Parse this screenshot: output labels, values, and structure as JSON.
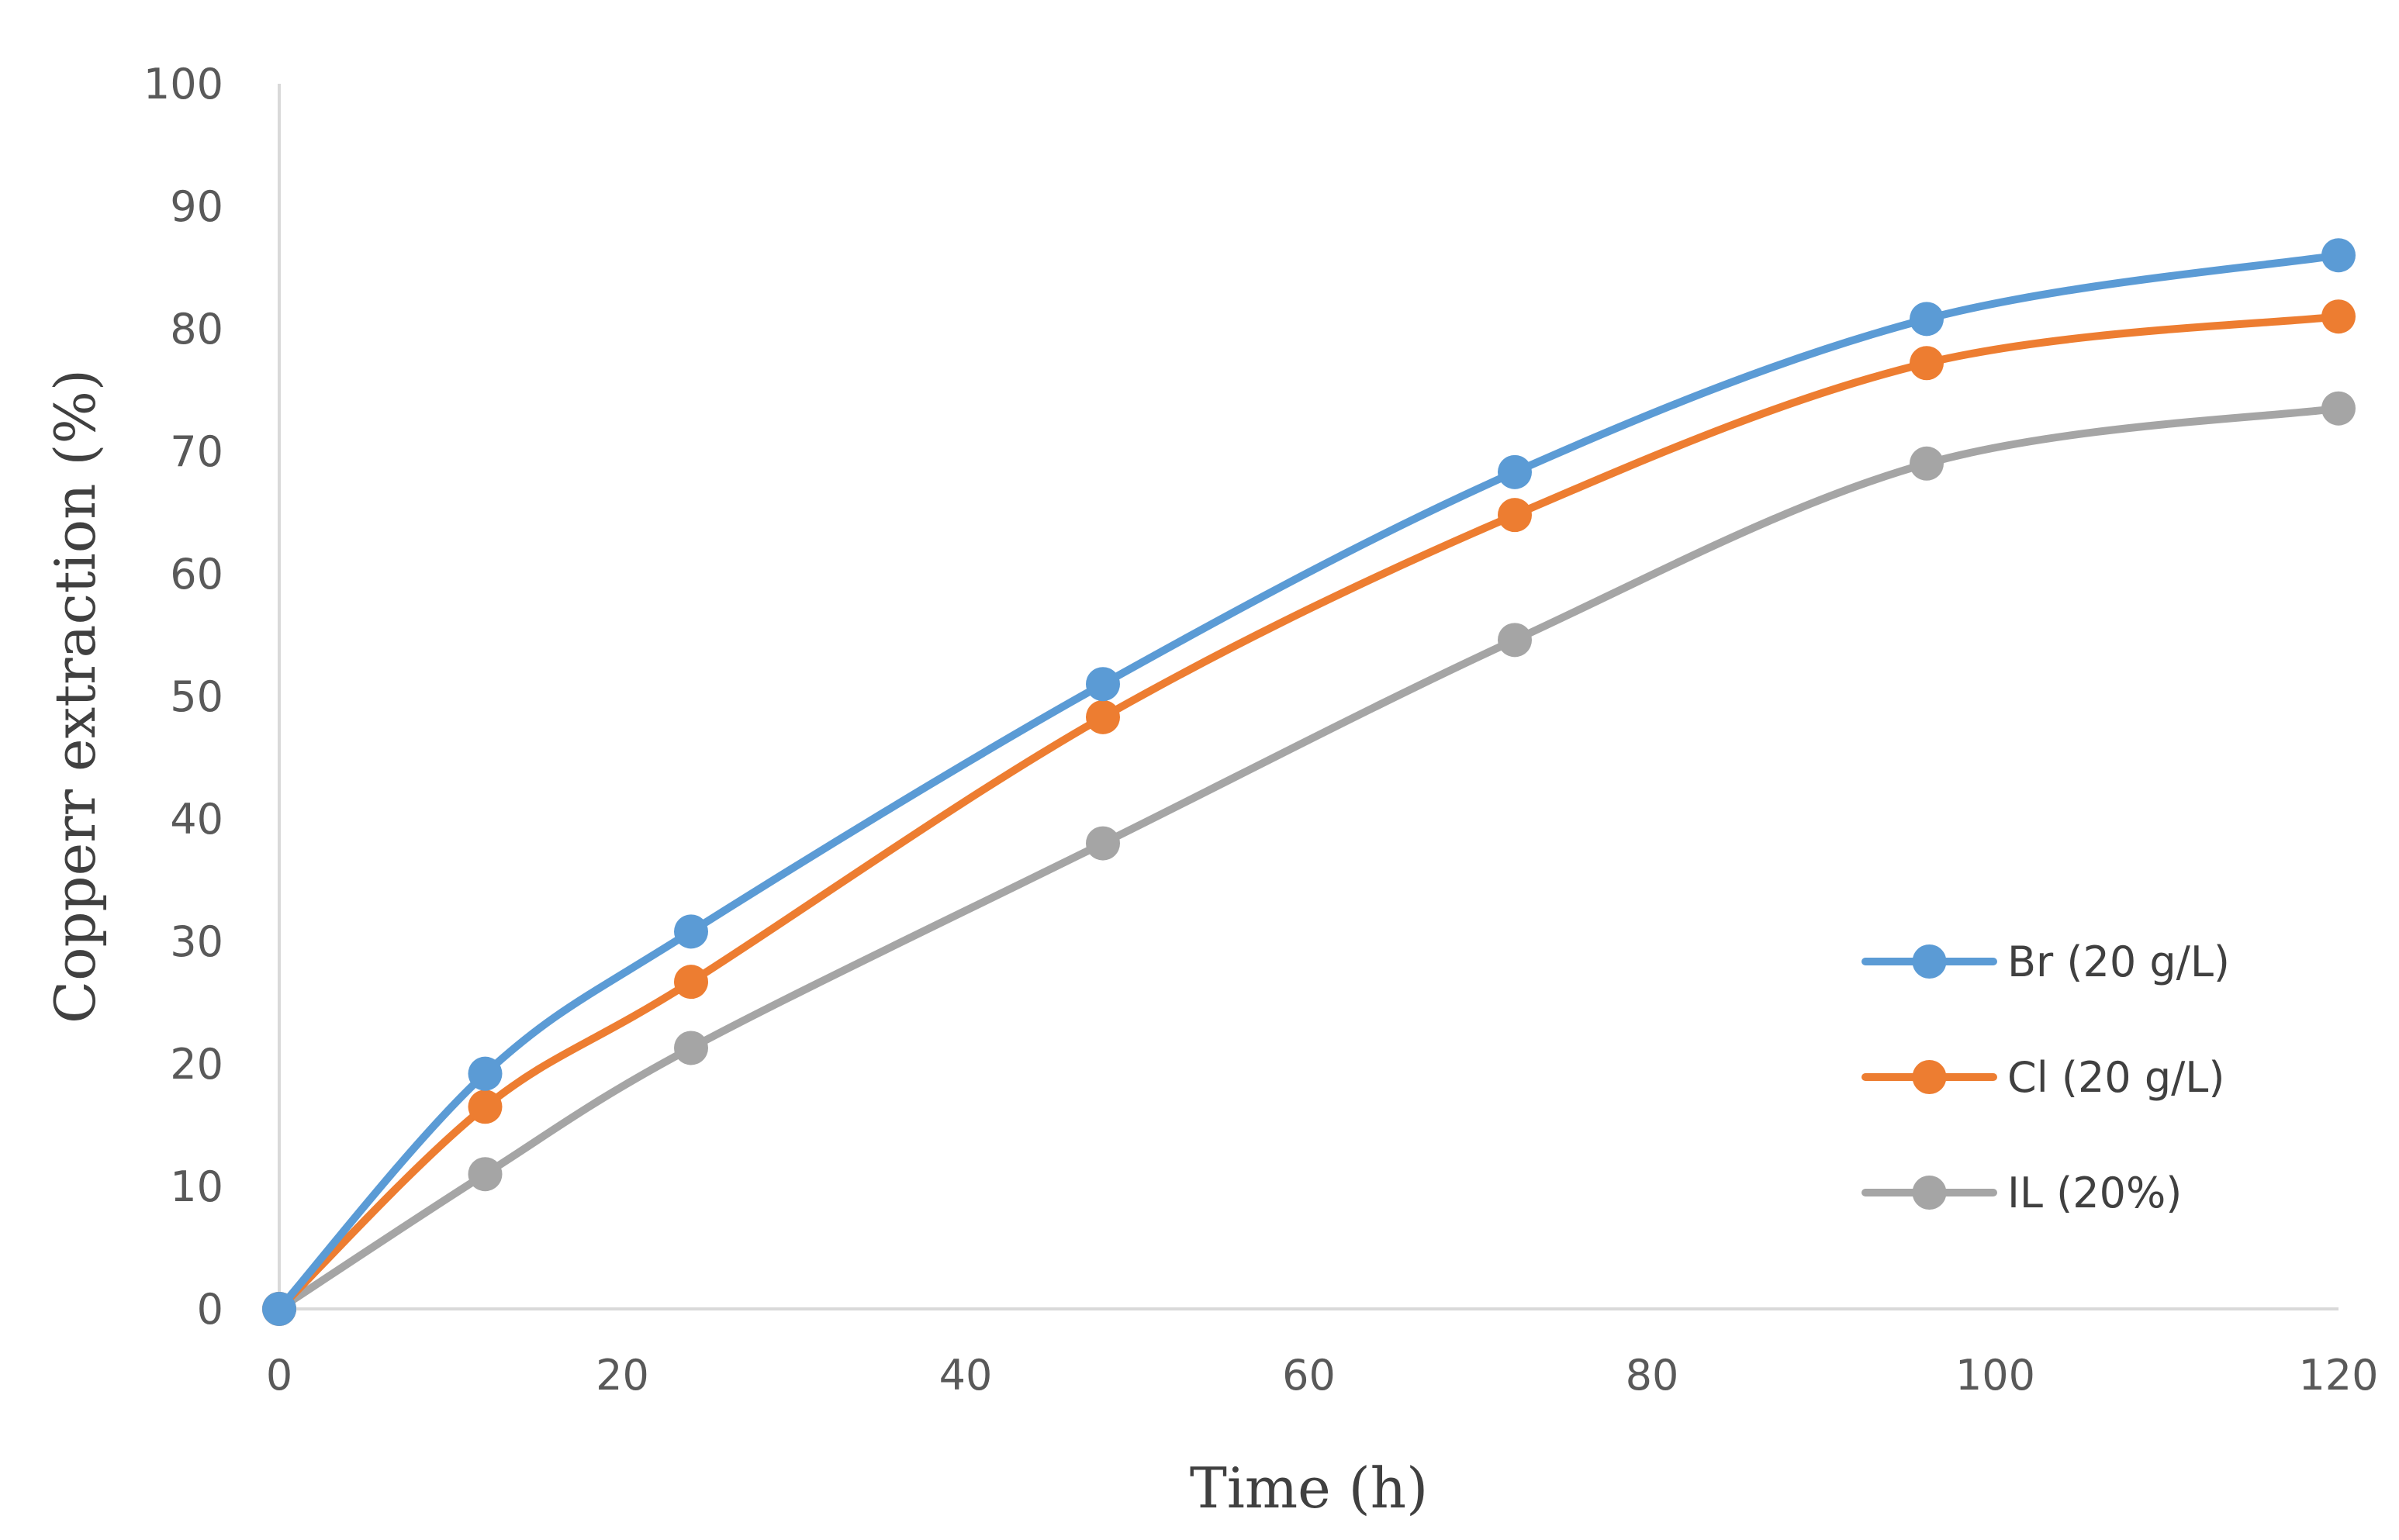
{
  "chart_data": {
    "type": "line",
    "title": "",
    "xlabel": "Time (h)",
    "ylabel": "Copperr  extraction (%)",
    "xlim": [
      0,
      120
    ],
    "ylim": [
      0,
      100
    ],
    "xticks": [
      0,
      20,
      40,
      60,
      80,
      100,
      120
    ],
    "yticks": [
      0,
      10,
      20,
      30,
      40,
      50,
      60,
      70,
      80,
      90,
      100
    ],
    "grid": false,
    "legend_position": "right",
    "x": [
      0,
      12,
      24,
      48,
      72,
      96,
      120
    ],
    "series": [
      {
        "name": "Br (20 g/L)",
        "color": "#5B9BD5",
        "values": [
          0,
          19.2,
          30.8,
          51.0,
          68.3,
          80.8,
          86.0
        ]
      },
      {
        "name": "Cl (20 g/L)",
        "color": "#ED7D31",
        "values": [
          0,
          16.5,
          26.7,
          48.3,
          64.8,
          77.2,
          81.0
        ]
      },
      {
        "name": "IL (20%)",
        "color": "#A5A5A5",
        "values": [
          0,
          11.0,
          21.3,
          38.0,
          54.6,
          69.0,
          73.5
        ]
      }
    ]
  }
}
